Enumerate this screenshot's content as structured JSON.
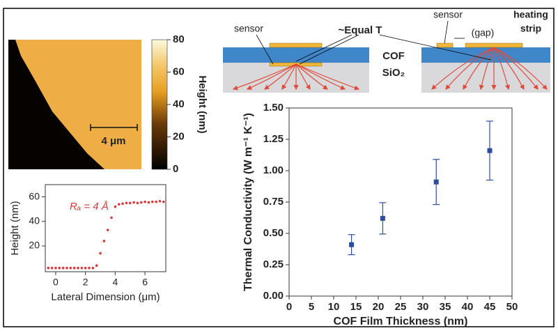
{
  "chart_data": [
    {
      "type": "image",
      "ylabel": "Height (nm)",
      "ylim": [
        0,
        80
      ],
      "yticks": [
        0,
        20,
        40,
        60,
        80
      ],
      "scale_bar": "4 μm"
    },
    {
      "type": "line",
      "xlabel": "Lateral Dimension (μm)",
      "ylabel": "Height (nm)",
      "annotation": "Rₐ = 4 Å",
      "xlim": [
        -0.7,
        7.4
      ],
      "ylim": [
        -1,
        70
      ],
      "xticks": [
        0,
        2,
        4,
        6
      ],
      "yticks": [
        20,
        40,
        60
      ],
      "series": [
        {
          "color": "#d63a3a",
          "x": [
            -0.5,
            -0.25,
            0,
            0.25,
            0.5,
            0.75,
            1,
            1.25,
            1.5,
            1.75,
            2,
            2.25,
            2.5,
            2.75,
            3,
            3.25,
            3.5,
            3.75,
            4,
            4.25,
            4.5,
            4.75,
            5,
            5.25,
            5.5,
            5.75,
            6,
            6.25,
            6.5,
            6.75,
            7,
            7.25
          ],
          "values": [
            2,
            2,
            2,
            2,
            2,
            2,
            2,
            2,
            2,
            2,
            2,
            2,
            2,
            4,
            14,
            24,
            33,
            43,
            52,
            54,
            54.5,
            55,
            55,
            55.5,
            55,
            55.5,
            56,
            55.5,
            56,
            56,
            56.5,
            56
          ]
        }
      ]
    },
    {
      "type": "scatter",
      "xlabel": "COF Film Thickness (nm)",
      "ylabel": "Thermal Conductivity (W m⁻¹ K⁻¹)",
      "xlim": [
        0,
        50
      ],
      "ylim": [
        0,
        1.5
      ],
      "xticks": [
        0,
        5,
        10,
        15,
        20,
        25,
        30,
        35,
        40,
        45,
        50
      ],
      "yticks": [
        {
          "value": 0,
          "label": "0.00"
        },
        {
          "value": 0.25,
          "label": "0.25"
        },
        {
          "value": 0.5,
          "label": "0.50"
        },
        {
          "value": 0.75,
          "label": "0.75"
        },
        {
          "value": 1,
          "label": "1.00"
        },
        {
          "value": 1.25,
          "label": "1.25"
        },
        {
          "value": 1.5,
          "label": "1.50"
        }
      ],
      "color": "#2d4d9e",
      "x": [
        14,
        21,
        33,
        45
      ],
      "values": [
        0.41,
        0.62,
        0.91,
        1.16
      ],
      "error": [
        0.08,
        0.125,
        0.18,
        0.235
      ]
    }
  ],
  "diagram": {
    "labels": [
      "sensor",
      "~Equal T",
      "sensor",
      "(gap)",
      "heating",
      "strip",
      "COF",
      "SiO₂"
    ]
  }
}
